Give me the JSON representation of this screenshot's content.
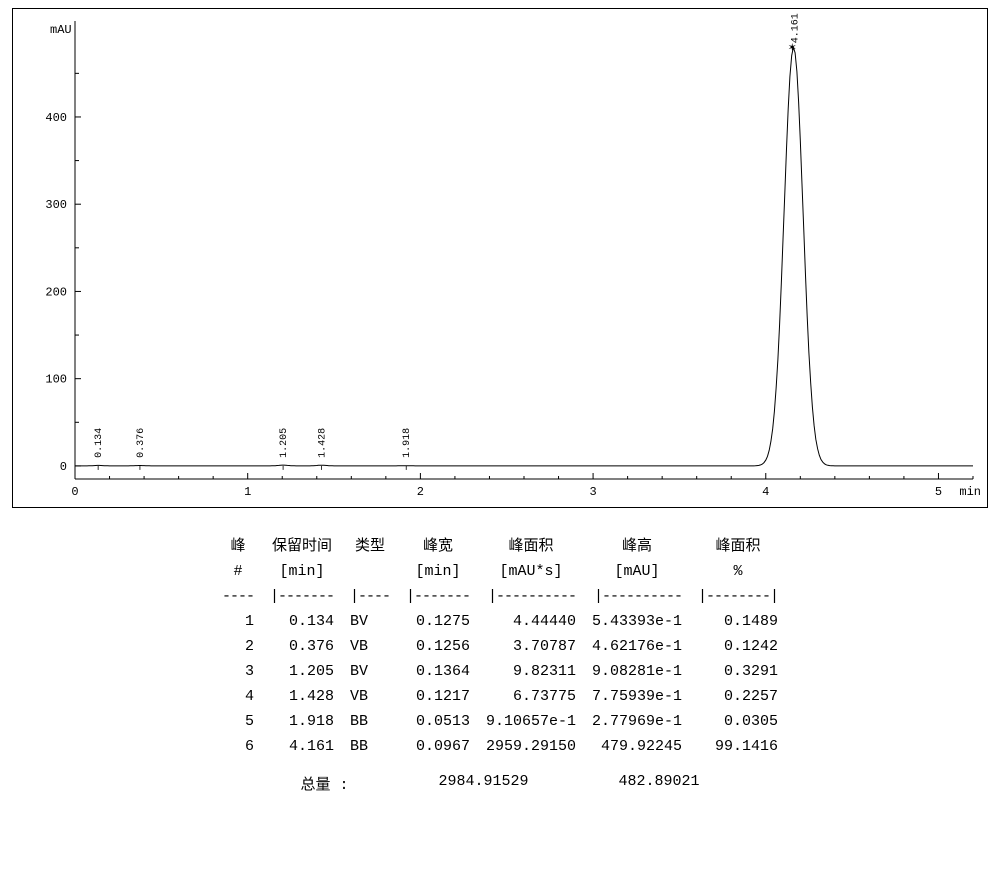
{
  "chart": {
    "type": "line-chromatogram",
    "y_unit": "mAU",
    "x_unit": "min",
    "xlim": [
      0,
      5.2
    ],
    "ylim": [
      -15,
      510
    ],
    "ytick_step": 100,
    "xtick_step": 1,
    "background_color": "#ffffff",
    "axis_color": "#000000",
    "line_color": "#000000",
    "line_width": 1,
    "label_fontsize": 12,
    "tick_fontsize": 12,
    "peak_label_fontsize": 10,
    "peaks": [
      {
        "rt": 0.134,
        "height": 0.543,
        "label": "0.134"
      },
      {
        "rt": 0.376,
        "height": 0.462,
        "label": "0.376"
      },
      {
        "rt": 1.205,
        "height": 0.908,
        "label": "1.205"
      },
      {
        "rt": 1.428,
        "height": 0.776,
        "label": "1.428"
      },
      {
        "rt": 1.918,
        "height": 0.278,
        "label": "1.918"
      },
      {
        "rt": 4.161,
        "height": 479.922,
        "label": "4.161",
        "main": true
      }
    ]
  },
  "table": {
    "headers1": [
      "峰",
      "保留时间",
      "类型",
      "峰宽",
      "峰面积",
      "峰高",
      "峰面积"
    ],
    "headers2": [
      "#",
      "[min]",
      "",
      "[min]",
      "[mAU*s]",
      "[mAU]",
      "%"
    ],
    "rows": [
      [
        "1",
        "0.134",
        "BV",
        "0.1275",
        "4.44440",
        "5.43393e-1",
        "0.1489"
      ],
      [
        "2",
        "0.376",
        "VB",
        "0.1256",
        "3.70787",
        "4.62176e-1",
        "0.1242"
      ],
      [
        "3",
        "1.205",
        "BV",
        "0.1364",
        "9.82311",
        "9.08281e-1",
        "0.3291"
      ],
      [
        "4",
        "1.428",
        "VB",
        "0.1217",
        "6.73775",
        "7.75939e-1",
        "0.2257"
      ],
      [
        "5",
        "1.918",
        "BB",
        "0.0513",
        "9.10657e-1",
        "2.77969e-1",
        "0.0305"
      ],
      [
        "6",
        "4.161",
        "BB",
        "0.0967",
        "2959.29150",
        "479.92245",
        "99.1416"
      ]
    ]
  },
  "totals": {
    "label": "总量 :",
    "area": "2984.91529",
    "height": "482.89021"
  }
}
